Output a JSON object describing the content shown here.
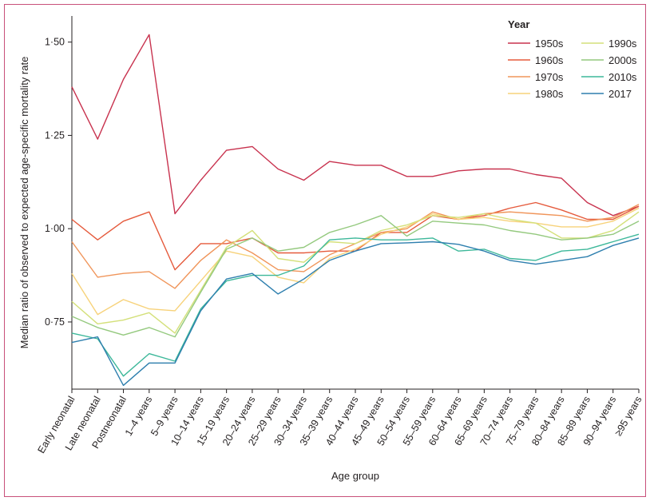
{
  "chart_data": {
    "type": "line",
    "xlabel": "Age group",
    "ylabel": "Median ratio of observed to expected age-specific mortality rate",
    "ylim": [
      0.57,
      1.57
    ],
    "yticks": [
      0.75,
      1.0,
      1.25,
      1.5
    ],
    "ytick_labels": [
      "0·75",
      "1·00",
      "1·25",
      "1·50"
    ],
    "categories": [
      "Early neonatal",
      "Late neonatal",
      "Postneonatal",
      "1–4 years",
      "5–9 years",
      "10–14 years",
      "15–19 years",
      "20–24 years",
      "25–29 years",
      "30–34 years",
      "35–39 years",
      "40–44 years",
      "45–49 years",
      "50–54 years",
      "55–59 years",
      "60–64 years",
      "65–69 years",
      "70–74 years",
      "75–79 years",
      "80–84 years",
      "85–89 years",
      "90–94 years",
      "≥95 years"
    ],
    "grid": false,
    "legend": {
      "title": "Year",
      "position": "top-right",
      "columns": [
        [
          "1950s",
          "1960s",
          "1970s",
          "1980s"
        ],
        [
          "1990s",
          "2000s",
          "2010s",
          "2017"
        ]
      ]
    },
    "series": [
      {
        "name": "1950s",
        "color": "#c8324e",
        "values": [
          1.38,
          1.24,
          1.4,
          1.52,
          1.04,
          1.13,
          1.21,
          1.22,
          1.16,
          1.13,
          1.18,
          1.17,
          1.17,
          1.14,
          1.14,
          1.155,
          1.16,
          1.16,
          1.145,
          1.135,
          1.07,
          1.035,
          1.06
        ]
      },
      {
        "name": "1960s",
        "color": "#e55a3c",
        "values": [
          1.025,
          0.97,
          1.02,
          1.045,
          0.89,
          0.96,
          0.96,
          0.975,
          0.935,
          0.935,
          0.94,
          0.94,
          0.99,
          0.99,
          1.035,
          1.025,
          1.035,
          1.055,
          1.07,
          1.05,
          1.025,
          1.025,
          1.06
        ]
      },
      {
        "name": "1970s",
        "color": "#f0955a",
        "values": [
          0.965,
          0.87,
          0.88,
          0.885,
          0.84,
          0.915,
          0.97,
          0.935,
          0.89,
          0.885,
          0.93,
          0.96,
          0.99,
          1.0,
          1.045,
          1.025,
          1.04,
          1.045,
          1.04,
          1.035,
          1.02,
          1.03,
          1.065
        ]
      },
      {
        "name": "1980s",
        "color": "#f7d27a",
        "values": [
          0.88,
          0.77,
          0.81,
          0.785,
          0.78,
          0.86,
          0.94,
          0.925,
          0.87,
          0.855,
          0.92,
          0.945,
          0.985,
          1.005,
          1.04,
          1.025,
          1.03,
          1.02,
          1.015,
          1.005,
          1.005,
          1.02,
          1.055
        ]
      },
      {
        "name": "1990s",
        "color": "#d4e07a",
        "values": [
          0.805,
          0.745,
          0.755,
          0.775,
          0.72,
          0.835,
          0.95,
          0.995,
          0.92,
          0.91,
          0.965,
          0.96,
          0.995,
          1.01,
          1.035,
          1.03,
          1.04,
          1.025,
          1.015,
          0.975,
          0.975,
          0.995,
          1.045
        ]
      },
      {
        "name": "2000s",
        "color": "#94c97e",
        "values": [
          0.765,
          0.735,
          0.715,
          0.735,
          0.71,
          0.83,
          0.945,
          0.975,
          0.94,
          0.95,
          0.99,
          1.01,
          1.035,
          0.98,
          1.02,
          1.015,
          1.01,
          0.995,
          0.985,
          0.97,
          0.975,
          0.985,
          1.02
        ]
      },
      {
        "name": "2010s",
        "color": "#3db89a",
        "values": [
          0.72,
          0.705,
          0.605,
          0.665,
          0.645,
          0.785,
          0.86,
          0.875,
          0.875,
          0.9,
          0.97,
          0.975,
          0.97,
          0.97,
          0.975,
          0.94,
          0.945,
          0.92,
          0.915,
          0.94,
          0.945,
          0.965,
          0.985
        ]
      },
      {
        "name": "2017",
        "color": "#2e7fae",
        "values": [
          0.695,
          0.71,
          0.58,
          0.64,
          0.64,
          0.78,
          0.865,
          0.88,
          0.825,
          0.865,
          0.915,
          0.94,
          0.96,
          0.962,
          0.965,
          0.958,
          0.94,
          0.915,
          0.905,
          0.915,
          0.925,
          0.955,
          0.975
        ]
      }
    ]
  }
}
